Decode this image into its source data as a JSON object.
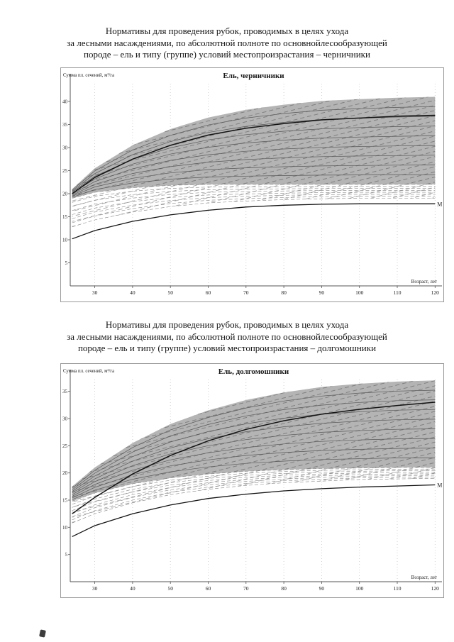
{
  "captions": {
    "first": [
      "Нормативы для проведения рубок, проводимых в целях ухода",
      "за лесными насаждениями, по абсолютной полноте по основнойлесообразующей",
      "породе – ель и типу (группе) условий местопроизрастания – черничники"
    ],
    "second": [
      "Нормативы для проведения рубок, проводимых в целях ухода",
      "за лесными насаждениями, по абсолютной полноте по основнойлесообразующей",
      "породе – ель и типу (группе) условий местопроизрастания – долгомошники"
    ]
  },
  "chart_data": [
    {
      "type": "line",
      "title": "Ель, черничники",
      "ylabel": "Сумма пл. сечений, м²/га",
      "xlabel": "Возраст, лет",
      "xlim": [
        23.5,
        120.5
      ],
      "ylim": [
        0,
        46
      ],
      "xticks": [
        30,
        40,
        50,
        60,
        70,
        80,
        90,
        100,
        110,
        120
      ],
      "yticks": [
        5,
        10,
        15,
        20,
        25,
        30,
        35,
        40
      ],
      "grid": "dotted-vertical",
      "legend_position": "none",
      "x": [
        24,
        30,
        40,
        50,
        60,
        70,
        80,
        90,
        100,
        110,
        120
      ],
      "band": {
        "top": [
          21,
          25.5,
          30.5,
          34,
          36.5,
          38.2,
          39.3,
          40.1,
          40.5,
          40.8,
          41
        ],
        "bottom": [
          19,
          20.3,
          21.3,
          21.8,
          22,
          22,
          22,
          22,
          22,
          22,
          22
        ]
      },
      "bold_upper": [
        20,
        23.5,
        27.5,
        30.5,
        32.7,
        34.2,
        35.2,
        36,
        36.4,
        36.8,
        37
      ],
      "hatch": {
        "top": [
          19,
          20.3,
          21.3,
          21.8,
          22,
          22,
          22,
          22,
          22,
          22,
          22
        ],
        "bottom": [
          12.8,
          14.3,
          16,
          17.2,
          18,
          18.4,
          18.7,
          18.9,
          19,
          19,
          19
        ]
      },
      "bold_lower": [
        10.2,
        12,
        14,
        15.4,
        16.4,
        17.1,
        17.5,
        17.7,
        17.8,
        17.8,
        17.8
      ],
      "curve_label": "М",
      "thin_count": 8,
      "dashed_count": 7,
      "band_color": "#b4b4b4"
    },
    {
      "type": "line",
      "title": "Ель, долгомошники",
      "ylabel": "Сумма пл. сечений, м²/га",
      "xlabel": "Возраст, лет",
      "xlim": [
        23.5,
        120.5
      ],
      "ylim": [
        0,
        39
      ],
      "xticks": [
        30,
        40,
        50,
        60,
        70,
        80,
        90,
        100,
        110,
        120
      ],
      "yticks": [
        5,
        10,
        15,
        20,
        25,
        30,
        35
      ],
      "grid": "dotted-vertical",
      "legend_position": "none",
      "x": [
        24,
        30,
        40,
        50,
        60,
        70,
        80,
        90,
        100,
        110,
        120
      ],
      "band": {
        "top": [
          17.5,
          21,
          25.5,
          29,
          31.5,
          33.4,
          34.8,
          35.8,
          36.4,
          36.8,
          37
        ],
        "bottom": [
          14.8,
          16.3,
          18,
          19.1,
          19.8,
          20.3,
          20.6,
          20.8,
          20.9,
          21,
          21
        ]
      },
      "bold_upper": [
        12.5,
        15.5,
        19.8,
        23.2,
        25.9,
        28,
        29.6,
        30.8,
        31.7,
        32.4,
        33
      ],
      "hatch": {
        "top": [
          14.8,
          16.3,
          18,
          19.1,
          19.8,
          20.3,
          20.6,
          20.8,
          20.9,
          21,
          21
        ],
        "bottom": [
          10.8,
          12.5,
          14.5,
          16,
          17,
          17.7,
          18.2,
          18.5,
          18.8,
          18.9,
          19
        ]
      },
      "bold_lower": [
        8.3,
        10.3,
        12.5,
        14.1,
        15.3,
        16.1,
        16.7,
        17.1,
        17.4,
        17.6,
        17.8
      ],
      "curve_label": "М",
      "thin_count": 8,
      "dashed_count": 7,
      "band_color": "#b4b4b4"
    }
  ]
}
